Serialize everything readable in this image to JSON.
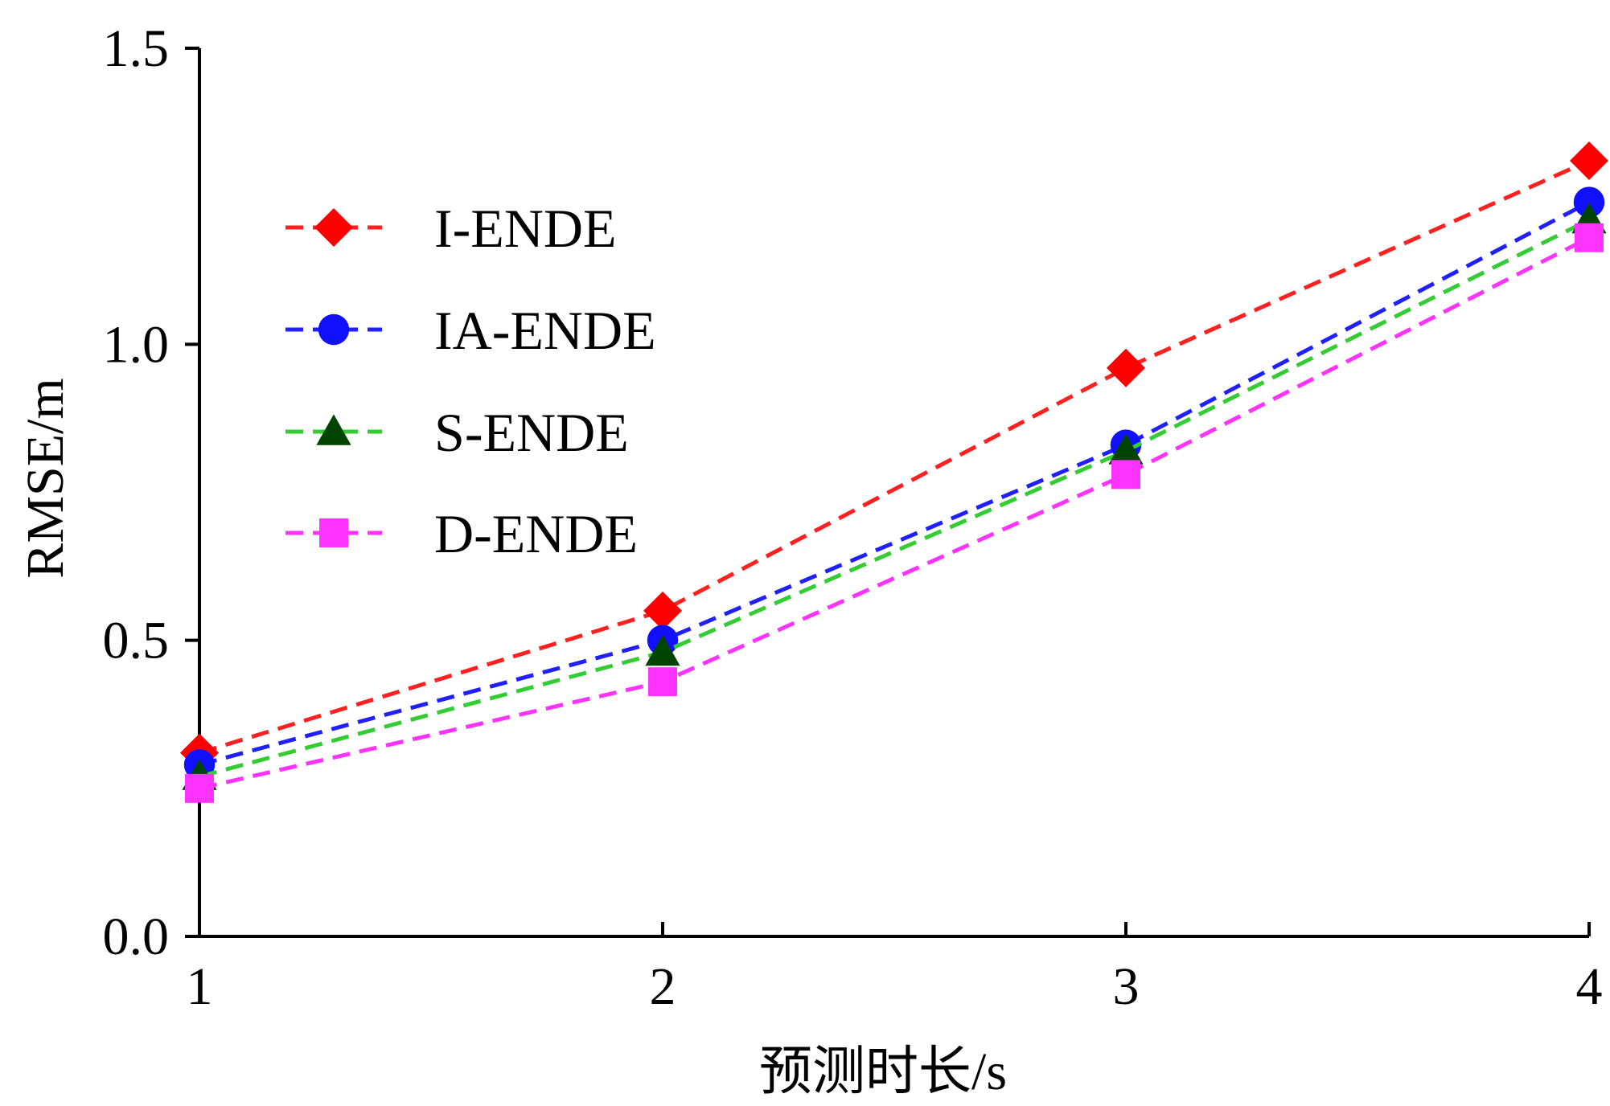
{
  "chart_data": {
    "type": "line",
    "title": "",
    "xlabel": "预测时长/s",
    "ylabel": "RMSE/m",
    "x": [
      1,
      2,
      3,
      4
    ],
    "xlim": [
      1,
      4
    ],
    "ylim": [
      0,
      1.5
    ],
    "x_ticks": [
      "1",
      "2",
      "3",
      "4"
    ],
    "y_ticks": [
      "0.0",
      "0.5",
      "1.0",
      "1.5"
    ],
    "grid": false,
    "legend_position": "upper-left",
    "series": [
      {
        "name": "I-ENDE",
        "values": [
          0.31,
          0.55,
          0.96,
          1.31
        ],
        "line_color": "#ff2020",
        "marker": "diamond",
        "marker_color": "#ff0000"
      },
      {
        "name": "IA-ENDE",
        "values": [
          0.29,
          0.5,
          0.83,
          1.24
        ],
        "line_color": "#2020ff",
        "marker": "circle",
        "marker_color": "#1010ff"
      },
      {
        "name": "S-ENDE",
        "values": [
          0.27,
          0.48,
          0.82,
          1.21
        ],
        "line_color": "#33cc33",
        "marker": "triangle",
        "marker_color": "#004400"
      },
      {
        "name": "D-ENDE",
        "values": [
          0.25,
          0.43,
          0.78,
          1.18
        ],
        "line_color": "#ff33ff",
        "marker": "square",
        "marker_color": "#ff33ff"
      }
    ]
  }
}
